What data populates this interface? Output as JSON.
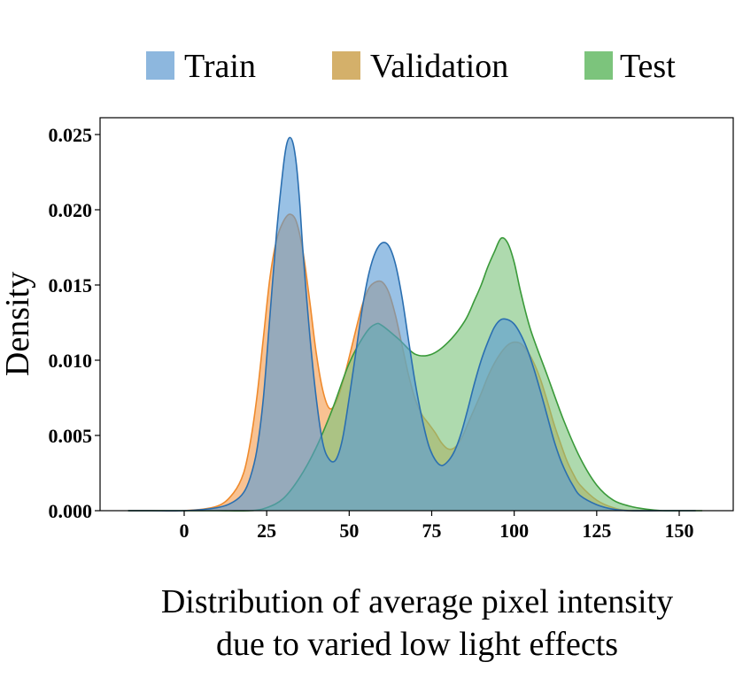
{
  "chart_data": {
    "type": "area",
    "title": "",
    "xlabel": "Distribution of average pixel intensity due to varied low light effects",
    "xlabel_lines": [
      "Distribution of average pixel intensity",
      "due to varied low light effects"
    ],
    "ylabel": "Density",
    "xlim": [
      -25,
      160
    ],
    "ylim": [
      0,
      0.026
    ],
    "x_ticks": [
      0,
      25,
      50,
      75,
      100,
      125,
      150
    ],
    "x_tick_labels": [
      "0",
      "25",
      "50",
      "75",
      "100",
      "125",
      "150"
    ],
    "y_ticks": [
      0,
      0.005,
      0.01,
      0.015,
      0.02,
      0.025
    ],
    "y_tick_labels": [
      "0.000",
      "0.005",
      "0.010",
      "0.015",
      "0.020",
      "0.025"
    ],
    "grid": false,
    "legend_position": "top",
    "series": [
      {
        "name": "Validation",
        "color": "#ef8a2c",
        "fill": "#f39c4f",
        "legend_color": "#d4b06a",
        "x": [
          -17,
          -10,
          0,
          10,
          15,
          18,
          20,
          22,
          24,
          26,
          28,
          30,
          32,
          34,
          36,
          38,
          40,
          42,
          44,
          46,
          48,
          50,
          52,
          54,
          56,
          58,
          60,
          62,
          64,
          66,
          68,
          70,
          72,
          74,
          76,
          78,
          80,
          82,
          84,
          86,
          88,
          90,
          92,
          94,
          96,
          98,
          100,
          102,
          104,
          106,
          108,
          110,
          112,
          114,
          116,
          118,
          120,
          125,
          130,
          135,
          145,
          155
        ],
        "values": [
          0.0,
          0.0,
          0.0,
          0.0003,
          0.0012,
          0.0025,
          0.0045,
          0.0075,
          0.0115,
          0.0155,
          0.018,
          0.0192,
          0.0197,
          0.0192,
          0.0172,
          0.014,
          0.0105,
          0.008,
          0.0068,
          0.0072,
          0.0085,
          0.0102,
          0.012,
          0.0137,
          0.0148,
          0.0152,
          0.0152,
          0.0145,
          0.013,
          0.011,
          0.009,
          0.0074,
          0.0064,
          0.0058,
          0.0052,
          0.0045,
          0.0041,
          0.0042,
          0.0048,
          0.0058,
          0.0068,
          0.0078,
          0.0089,
          0.0098,
          0.0105,
          0.011,
          0.0112,
          0.0111,
          0.0106,
          0.0098,
          0.0087,
          0.0073,
          0.0058,
          0.0045,
          0.0033,
          0.0024,
          0.0017,
          0.0007,
          0.0002,
          0.0,
          0.0,
          0.0
        ]
      },
      {
        "name": "Test",
        "color": "#3a9a3a",
        "fill": "#7cc47c",
        "legend_color": "#7cc47c",
        "x": [
          -17,
          0,
          10,
          20,
          25,
          30,
          35,
          40,
          45,
          50,
          55,
          58,
          60,
          65,
          70,
          75,
          80,
          85,
          88,
          90,
          92,
          94,
          96,
          98,
          100,
          102,
          105,
          110,
          115,
          120,
          125,
          130,
          135,
          140,
          145,
          150,
          157
        ],
        "values": [
          0.0,
          0.0,
          0.0,
          0.0,
          0.0002,
          0.0008,
          0.0022,
          0.0042,
          0.0068,
          0.0098,
          0.0118,
          0.0124,
          0.0123,
          0.0114,
          0.0104,
          0.0104,
          0.0112,
          0.0126,
          0.014,
          0.015,
          0.0162,
          0.0172,
          0.0181,
          0.0178,
          0.0165,
          0.0145,
          0.012,
          0.009,
          0.006,
          0.0035,
          0.0017,
          0.0007,
          0.0003,
          0.0001,
          0.0,
          0.0,
          0.0
        ]
      },
      {
        "name": "Train",
        "color": "#2b6fb0",
        "fill": "#5b9bd5",
        "legend_color": "#8db7de",
        "x": [
          -17,
          -10,
          0,
          10,
          15,
          18,
          20,
          22,
          24,
          26,
          28,
          30,
          31,
          32,
          33,
          34,
          35,
          36,
          38,
          40,
          42,
          44,
          46,
          48,
          50,
          52,
          54,
          56,
          58,
          60,
          62,
          64,
          66,
          68,
          70,
          72,
          74,
          76,
          78,
          80,
          82,
          84,
          86,
          88,
          90,
          92,
          94,
          96,
          98,
          100,
          102,
          104,
          106,
          108,
          110,
          112,
          114,
          116,
          118,
          120,
          125,
          130,
          135,
          145,
          155
        ],
        "values": [
          0.0,
          0.0,
          0.0,
          0.0002,
          0.0006,
          0.0012,
          0.0022,
          0.004,
          0.0075,
          0.013,
          0.0185,
          0.0228,
          0.0243,
          0.0248,
          0.0244,
          0.023,
          0.0205,
          0.0172,
          0.0118,
          0.0075,
          0.0045,
          0.0034,
          0.0034,
          0.0048,
          0.0075,
          0.0105,
          0.0135,
          0.0158,
          0.0172,
          0.0178,
          0.0176,
          0.0164,
          0.0142,
          0.0113,
          0.0085,
          0.0062,
          0.0044,
          0.0034,
          0.003,
          0.0033,
          0.004,
          0.0052,
          0.0068,
          0.0085,
          0.01,
          0.0112,
          0.0122,
          0.0127,
          0.0127,
          0.0124,
          0.0117,
          0.0107,
          0.0094,
          0.0079,
          0.0063,
          0.0047,
          0.0034,
          0.0024,
          0.0016,
          0.001,
          0.0004,
          0.0001,
          0.0,
          0.0,
          0.0
        ]
      }
    ]
  },
  "legend": {
    "items": [
      {
        "label": "Train",
        "color": "#8db7de"
      },
      {
        "label": "Validation",
        "color": "#d4b06a"
      },
      {
        "label": "Test",
        "color": "#7cc47c"
      }
    ]
  }
}
